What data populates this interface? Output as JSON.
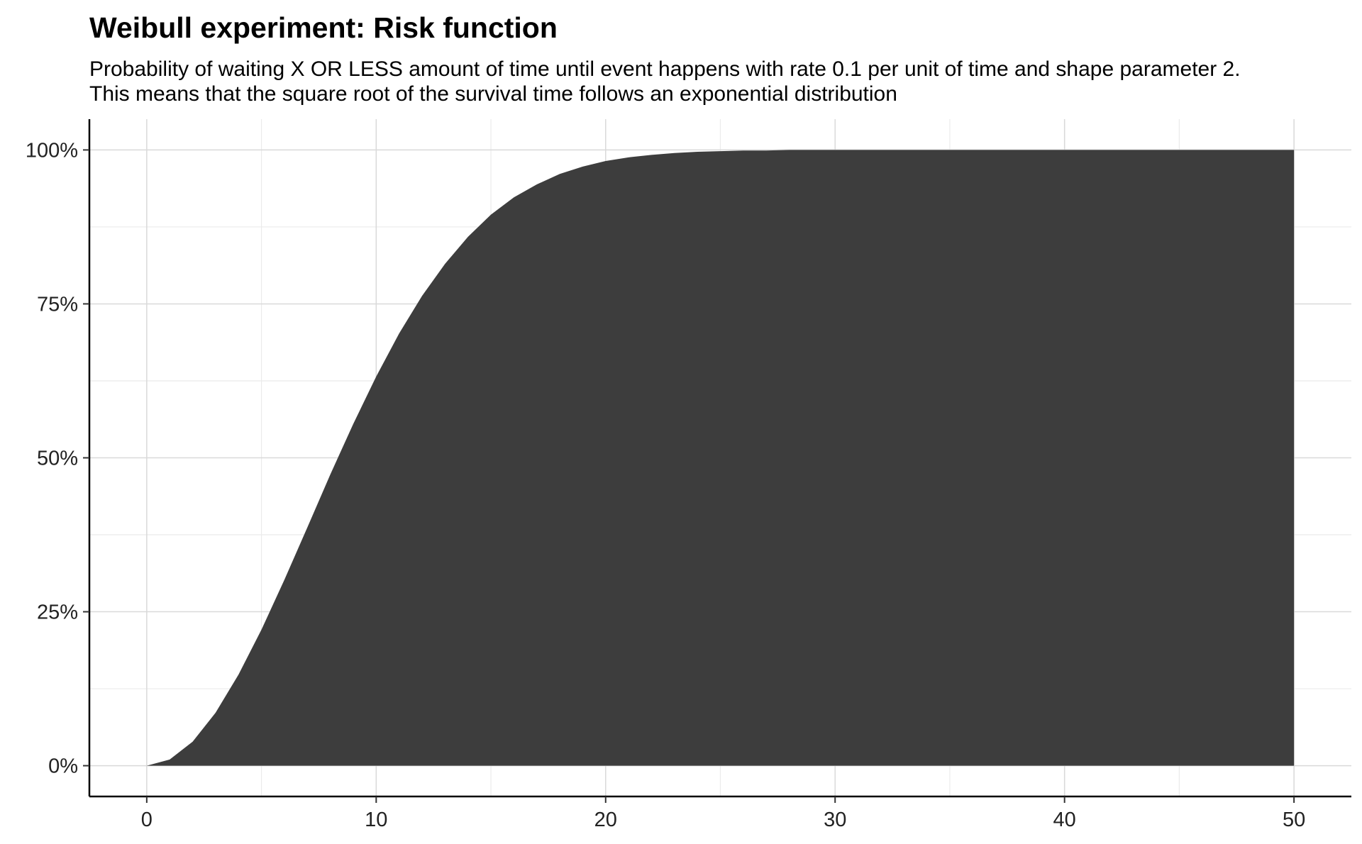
{
  "chart_data": {
    "type": "area",
    "title": "Weibull experiment: Risk function",
    "subtitle_lines": [
      "Probability of waiting X OR LESS amount of time until event happens with rate 0.1 per unit of time and shape parameter 2.",
      "This means that the square root of the survival time follows an exponential distribution"
    ],
    "xlabel": "",
    "ylabel": "",
    "xlim": [
      -2.5,
      52.5
    ],
    "ylim": [
      -0.05,
      1.05
    ],
    "x_ticks": [
      0,
      10,
      20,
      30,
      40,
      50
    ],
    "x_tick_labels": [
      "0",
      "10",
      "20",
      "30",
      "40",
      "50"
    ],
    "y_ticks": [
      0,
      0.25,
      0.5,
      0.75,
      1.0
    ],
    "y_tick_labels": [
      "0%",
      "25%",
      "50%",
      "75%",
      "100%"
    ],
    "grid": true,
    "fill_color": "#3d3d3d",
    "x": [
      0,
      1,
      2,
      3,
      4,
      5,
      6,
      7,
      8,
      9,
      10,
      11,
      12,
      13,
      14,
      15,
      16,
      17,
      18,
      19,
      20,
      21,
      22,
      23,
      24,
      25,
      26,
      27,
      28,
      29,
      30,
      31,
      32,
      33,
      34,
      35,
      36,
      37,
      38,
      39,
      40,
      41,
      42,
      43,
      44,
      45,
      46,
      47,
      48,
      49,
      50
    ],
    "y": [
      0.0,
      0.01,
      0.039,
      0.086,
      0.148,
      0.221,
      0.302,
      0.387,
      0.473,
      0.555,
      0.632,
      0.702,
      0.763,
      0.815,
      0.859,
      0.895,
      0.923,
      0.944,
      0.961,
      0.973,
      0.982,
      0.988,
      0.992,
      0.995,
      0.997,
      0.998,
      0.999,
      0.999,
      1.0,
      1.0,
      1.0,
      1.0,
      1.0,
      1.0,
      1.0,
      1.0,
      1.0,
      1.0,
      1.0,
      1.0,
      1.0,
      1.0,
      1.0,
      1.0,
      1.0,
      1.0,
      1.0,
      1.0,
      1.0,
      1.0,
      1.0
    ]
  }
}
